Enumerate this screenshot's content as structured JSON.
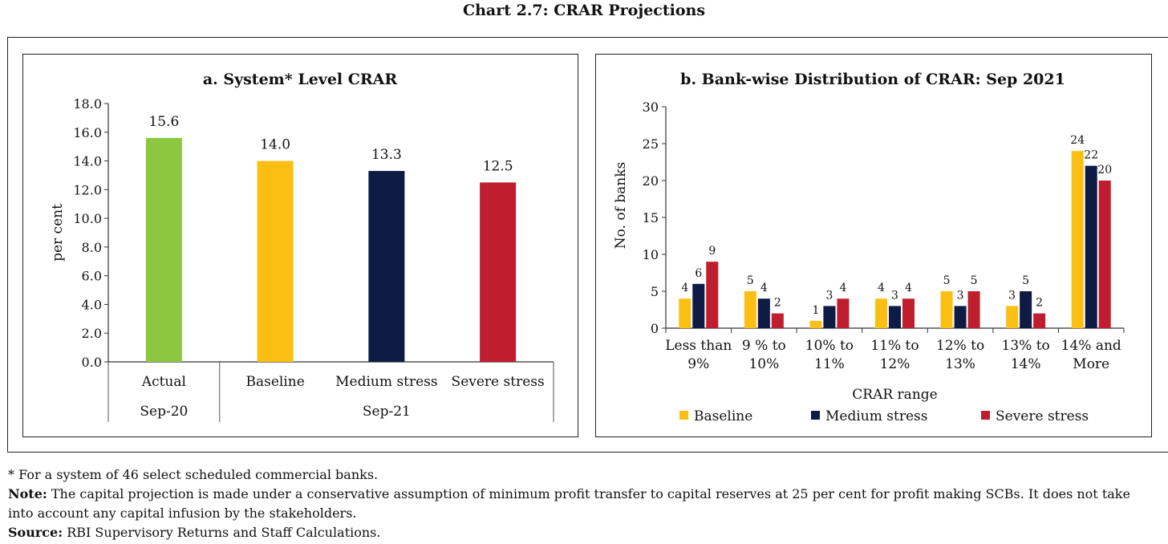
{
  "title": "Chart 2.7: CRAR Projections",
  "chart_data": [
    {
      "type": "bar",
      "title": "a. System* Level CRAR",
      "ylabel": "per cent",
      "xlabel": "",
      "ylim": [
        0,
        18
      ],
      "yticks": [
        "0.0",
        "2.0",
        "4.0",
        "6.0",
        "8.0",
        "10.0",
        "12.0",
        "14.0",
        "16.0",
        "18.0"
      ],
      "categories": [
        "Actual",
        "Baseline",
        "Medium stress",
        "Severe stress"
      ],
      "groups": [
        "Sep-20",
        "Sep-21"
      ],
      "values": [
        15.6,
        14.0,
        13.3,
        12.5
      ],
      "value_labels": [
        "15.6",
        "14.0",
        "13.3",
        "12.5"
      ],
      "colors": [
        "#8dc63f",
        "#fbbf14",
        "#0d1b45",
        "#be1e2d"
      ],
      "grid": false
    },
    {
      "type": "bar",
      "title": "b. Bank-wise Distribution of CRAR: Sep 2021",
      "ylabel": "No. of banks",
      "xlabel": "CRAR range",
      "ylim": [
        0,
        30
      ],
      "yticks": [
        "0",
        "5",
        "10",
        "15",
        "20",
        "25",
        "30"
      ],
      "categories": [
        [
          "Less than",
          "9%"
        ],
        [
          "9 % to",
          "10%"
        ],
        [
          "10% to",
          "11%"
        ],
        [
          "11% to",
          "12%"
        ],
        [
          "12% to",
          "13%"
        ],
        [
          "13% to",
          "14%"
        ],
        [
          "14% and",
          "More"
        ]
      ],
      "series": [
        {
          "name": "Baseline",
          "color": "#fbbf14",
          "values": [
            4,
            5,
            1,
            4,
            5,
            3,
            24
          ]
        },
        {
          "name": "Medium stress",
          "color": "#0d1b45",
          "values": [
            6,
            4,
            3,
            3,
            3,
            5,
            22
          ]
        },
        {
          "name": "Severe stress",
          "color": "#be1e2d",
          "values": [
            9,
            2,
            4,
            4,
            5,
            2,
            20
          ]
        }
      ],
      "legend": "bottom",
      "grid": false
    }
  ],
  "footnotes": {
    "star": "* For a system of 46 select scheduled commercial banks.",
    "note_label": "Note:",
    "note_line1": " The capital projection is made under a conservative assumption of minimum profit transfer to capital reserves at 25 per cent for profit making SCBs. It does not take",
    "note_line2": "into account any capital infusion by the stakeholders.",
    "source_label": "Source:",
    "source_text": " RBI Supervisory Returns and Staff Calculations."
  }
}
